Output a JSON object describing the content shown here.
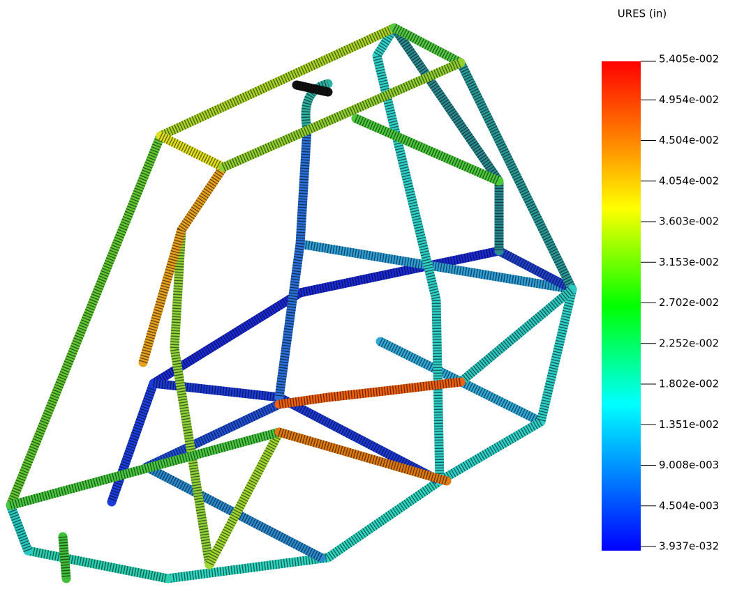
{
  "legend": {
    "title": "URES (in)",
    "labels": [
      "5.405e-002",
      "4.954e-002",
      "4.504e-002",
      "4.054e-002",
      "3.603e-002",
      "3.153e-002",
      "2.702e-002",
      "2.252e-002",
      "1.802e-002",
      "1.351e-002",
      "9.008e-003",
      "4.504e-003",
      "3.937e-032"
    ]
  }
}
